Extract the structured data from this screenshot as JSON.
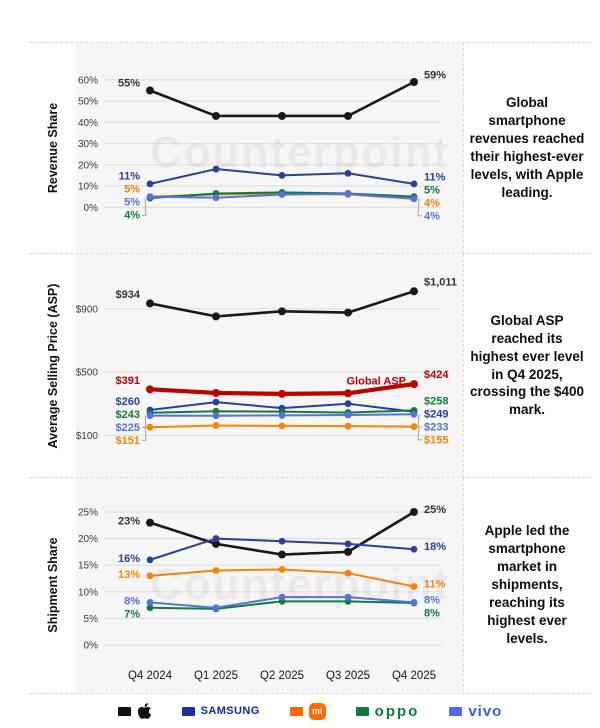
{
  "watermark": "Counterpoint",
  "chart_data": [
    {
      "type": "line",
      "ylabel": "Revenue Share",
      "note": "Global smartphone revenues reached their highest-ever levels, with Apple leading.",
      "x_categories": [
        "Q4 2024",
        "Q1 2025",
        "Q2 2025",
        "Q3 2025",
        "Q4 2025"
      ],
      "show_x_labels": false,
      "ylim": [
        -6,
        67
      ],
      "yticks": [
        {
          "v": 0,
          "label": "0%"
        },
        {
          "v": 10,
          "label": "10%"
        },
        {
          "v": 20,
          "label": "20%"
        },
        {
          "v": 30,
          "label": "30%"
        },
        {
          "v": 40,
          "label": "40%"
        },
        {
          "v": 50,
          "label": "50%"
        },
        {
          "v": 60,
          "label": "60%"
        }
      ],
      "series": [
        {
          "name": "Apple",
          "color": "#1a1a1a",
          "width": 2.6,
          "dot": 4,
          "values": [
            55,
            43,
            43,
            43,
            59
          ],
          "start_label": "55%",
          "end_label": "59%",
          "label_color": "#333333"
        },
        {
          "name": "Samsung",
          "color": "#2b3f9e",
          "width": 2,
          "values": [
            11,
            18,
            15,
            16,
            11
          ],
          "start_label": "11%",
          "end_label": "11%"
        },
        {
          "name": "Mi",
          "color": "#f8830a",
          "width": 2,
          "values": [
            5,
            6,
            6.5,
            6,
            4
          ],
          "start_label": "5%",
          "end_label": "4%"
        },
        {
          "name": "Oppo",
          "color": "#147a3d",
          "width": 2,
          "values": [
            4.3,
            6.5,
            7,
            6.5,
            5
          ],
          "start_label": "4%",
          "end_label": "5%"
        },
        {
          "name": "Vivo",
          "color": "#5472e4",
          "width": 2,
          "values": [
            5,
            4.5,
            6,
            6.3,
            4
          ],
          "start_label": "5%",
          "end_label": "4%"
        }
      ]
    },
    {
      "type": "line",
      "ylabel": "Average Selling Price (ASP)",
      "note": "Global ASP reached its highest ever level in Q4 2025, crossing the $400 mark.",
      "x_categories": [
        "Q4 2024",
        "Q1 2025",
        "Q2 2025",
        "Q3 2025",
        "Q4 2025"
      ],
      "show_x_labels": false,
      "ylim": [
        20,
        1120
      ],
      "yticks": [
        {
          "v": 100,
          "label": "$100"
        },
        {
          "v": 500,
          "label": "$500"
        },
        {
          "v": 900,
          "label": "$900"
        }
      ],
      "series": [
        {
          "name": "Apple",
          "color": "#1a1a1a",
          "width": 2.6,
          "dot": 4,
          "values": [
            934,
            852,
            884,
            876,
            1011
          ],
          "start_label": "$934",
          "end_label": "$1,011",
          "label_color": "#333333"
        },
        {
          "name": "Global ASP",
          "color": "#c00000",
          "width": 4.2,
          "dot": 4,
          "values": [
            391,
            368,
            362,
            366,
            424
          ],
          "start_label": "$391",
          "end_label": "$424",
          "inline_label": "Global ASP"
        },
        {
          "name": "Samsung",
          "color": "#2b3f9e",
          "width": 2,
          "values": [
            260,
            310,
            272,
            300,
            249
          ],
          "start_label": "$260",
          "end_label": "$249"
        },
        {
          "name": "Oppo",
          "color": "#147a3d",
          "width": 2,
          "values": [
            243,
            252,
            250,
            244,
            258
          ],
          "start_label": "$243",
          "end_label": "$258"
        },
        {
          "name": "Vivo",
          "color": "#5472e4",
          "width": 2,
          "values": [
            225,
            224,
            226,
            229,
            233
          ],
          "start_label": "$225",
          "end_label": "$233"
        },
        {
          "name": "Mi",
          "color": "#f8830a",
          "width": 2,
          "values": [
            151,
            162,
            160,
            158,
            155
          ],
          "start_label": "$151",
          "end_label": "$155"
        }
      ]
    },
    {
      "type": "line",
      "ylabel": "Shipment Share",
      "note": "Apple led the smartphone market in shipments, reaching its highest ever levels.",
      "x_categories": [
        "Q4 2024",
        "Q1 2025",
        "Q2 2025",
        "Q3 2025",
        "Q4 2025"
      ],
      "show_x_labels": true,
      "ylim": [
        -1.5,
        28
      ],
      "yticks": [
        {
          "v": 0,
          "label": "0%"
        },
        {
          "v": 5,
          "label": "5%"
        },
        {
          "v": 10,
          "label": "10%"
        },
        {
          "v": 15,
          "label": "15%"
        },
        {
          "v": 20,
          "label": "20%"
        },
        {
          "v": 25,
          "label": "25%"
        }
      ],
      "series": [
        {
          "name": "Apple",
          "color": "#1a1a1a",
          "width": 2.6,
          "dot": 4,
          "values": [
            23,
            19,
            17,
            17.5,
            25
          ],
          "start_label": "23%",
          "end_label": "25%",
          "label_color": "#333333"
        },
        {
          "name": "Samsung",
          "color": "#2b3f9e",
          "width": 2,
          "values": [
            16,
            20,
            19.5,
            19,
            18
          ],
          "start_label": "16%",
          "end_label": "18%"
        },
        {
          "name": "Mi",
          "color": "#f8830a",
          "width": 2,
          "values": [
            13,
            14,
            14.2,
            13.5,
            11
          ],
          "start_label": "13%",
          "end_label": "11%"
        },
        {
          "name": "Oppo",
          "color": "#147a3d",
          "width": 2,
          "values": [
            7,
            6.8,
            8.2,
            8.2,
            7.9
          ],
          "start_label": "7%",
          "end_label": "8%"
        },
        {
          "name": "Vivo",
          "color": "#5472e4",
          "width": 2,
          "values": [
            8,
            7,
            9,
            9,
            8
          ],
          "start_label": "8%",
          "end_label": "8%"
        }
      ]
    }
  ],
  "legend": {
    "apple": {
      "label": "Apple",
      "swatch": "#111111"
    },
    "samsung": {
      "label": "SAMSUNG",
      "swatch": "#1f2f9c"
    },
    "mi": {
      "label": "mi",
      "swatch": "#ff6900"
    },
    "oppo": {
      "label": "oppo",
      "swatch": "#0f7a3e"
    },
    "vivo": {
      "label": "vivo",
      "swatch": "#5566e8"
    }
  }
}
